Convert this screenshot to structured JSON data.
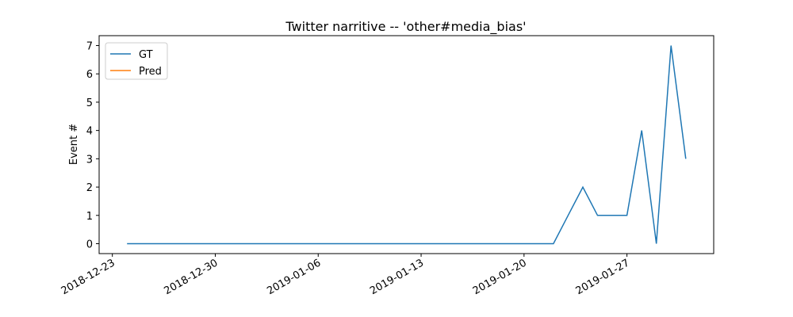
{
  "chart_data": {
    "type": "line",
    "title": "Twitter narritive -- 'other#media_bias'",
    "ylabel": "Event #",
    "x": [
      "2018-12-24",
      "2018-12-25",
      "2018-12-26",
      "2018-12-27",
      "2018-12-28",
      "2018-12-29",
      "2018-12-30",
      "2018-12-31",
      "2019-01-01",
      "2019-01-02",
      "2019-01-03",
      "2019-01-04",
      "2019-01-05",
      "2019-01-06",
      "2019-01-07",
      "2019-01-08",
      "2019-01-09",
      "2019-01-10",
      "2019-01-11",
      "2019-01-12",
      "2019-01-13",
      "2019-01-14",
      "2019-01-15",
      "2019-01-16",
      "2019-01-17",
      "2019-01-18",
      "2019-01-19",
      "2019-01-20",
      "2019-01-21",
      "2019-01-22",
      "2019-01-23",
      "2019-01-24",
      "2019-01-25",
      "2019-01-26",
      "2019-01-27",
      "2019-01-28",
      "2019-01-29",
      "2019-01-30",
      "2019-01-31"
    ],
    "series": [
      {
        "name": "GT",
        "color": "#1f77b4",
        "values": [
          0,
          0,
          0,
          0,
          0,
          0,
          0,
          0,
          0,
          0,
          0,
          0,
          0,
          0,
          0,
          0,
          0,
          0,
          0,
          0,
          0,
          0,
          0,
          0,
          0,
          0,
          0,
          0,
          0,
          0,
          1,
          2,
          1,
          1,
          1,
          4,
          0,
          7,
          3
        ]
      },
      {
        "name": "Pred",
        "color": "#ff7f0e",
        "values": [
          null,
          null,
          null,
          null,
          null,
          null,
          null,
          null,
          null,
          null,
          null,
          null,
          null,
          null,
          null,
          null,
          null,
          null,
          null,
          null,
          null,
          null,
          null,
          null,
          null,
          null,
          null,
          null,
          null,
          null,
          null,
          null,
          null,
          null,
          null,
          null,
          null,
          null,
          null
        ]
      }
    ],
    "xlim": [
      "2018-12-22T02:24",
      "2019-02-01T21:36"
    ],
    "xticks": [
      "2018-12-23",
      "2018-12-30",
      "2019-01-06",
      "2019-01-13",
      "2019-01-20",
      "2019-01-27"
    ],
    "ylim": [
      -0.35,
      7.35
    ],
    "yticks": [
      0,
      1,
      2,
      3,
      4,
      5,
      6,
      7
    ],
    "legend": "upper left"
  }
}
